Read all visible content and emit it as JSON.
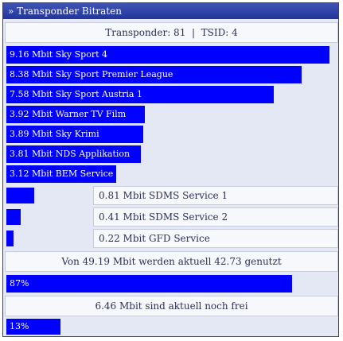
{
  "panel": {
    "title": "» Transponder Bitraten"
  },
  "header": {
    "text": "Transponder: 81  |  TSID: 4"
  },
  "services_large": [
    {
      "label": "9.16 Mbit Sky Sport 4",
      "mbit": 9.16
    },
    {
      "label": "8.38 Mbit Sky Sport Premier League",
      "mbit": 8.38
    },
    {
      "label": "7.58 Mbit Sky Sport Austria 1",
      "mbit": 7.58
    },
    {
      "label": "3.92 Mbit Warner TV Film",
      "mbit": 3.92
    },
    {
      "label": "3.89 Mbit Sky Krimi",
      "mbit": 3.89
    },
    {
      "label": "3.81 Mbit NDS Applikation",
      "mbit": 3.81
    },
    {
      "label": "3.12 Mbit BEM Service",
      "mbit": 3.12
    }
  ],
  "services_small": [
    {
      "label": "0.81 Mbit SDMS Service 1",
      "mbit": 0.81
    },
    {
      "label": "0.41 Mbit SDMS Service 2",
      "mbit": 0.41
    },
    {
      "label": "0.22 Mbit GFD Service",
      "mbit": 0.22
    }
  ],
  "usage": {
    "text": "Von 49.19 Mbit werden aktuell 42.73 genutzt",
    "percent_label": "87%",
    "fraction": 0.87
  },
  "free": {
    "text": "6.46 Mbit sind aktuell noch frei",
    "percent_label": "13%",
    "fraction": 0.13
  },
  "colors": {
    "bar": "#0000ff",
    "title_bar": "#2f42a8"
  }
}
